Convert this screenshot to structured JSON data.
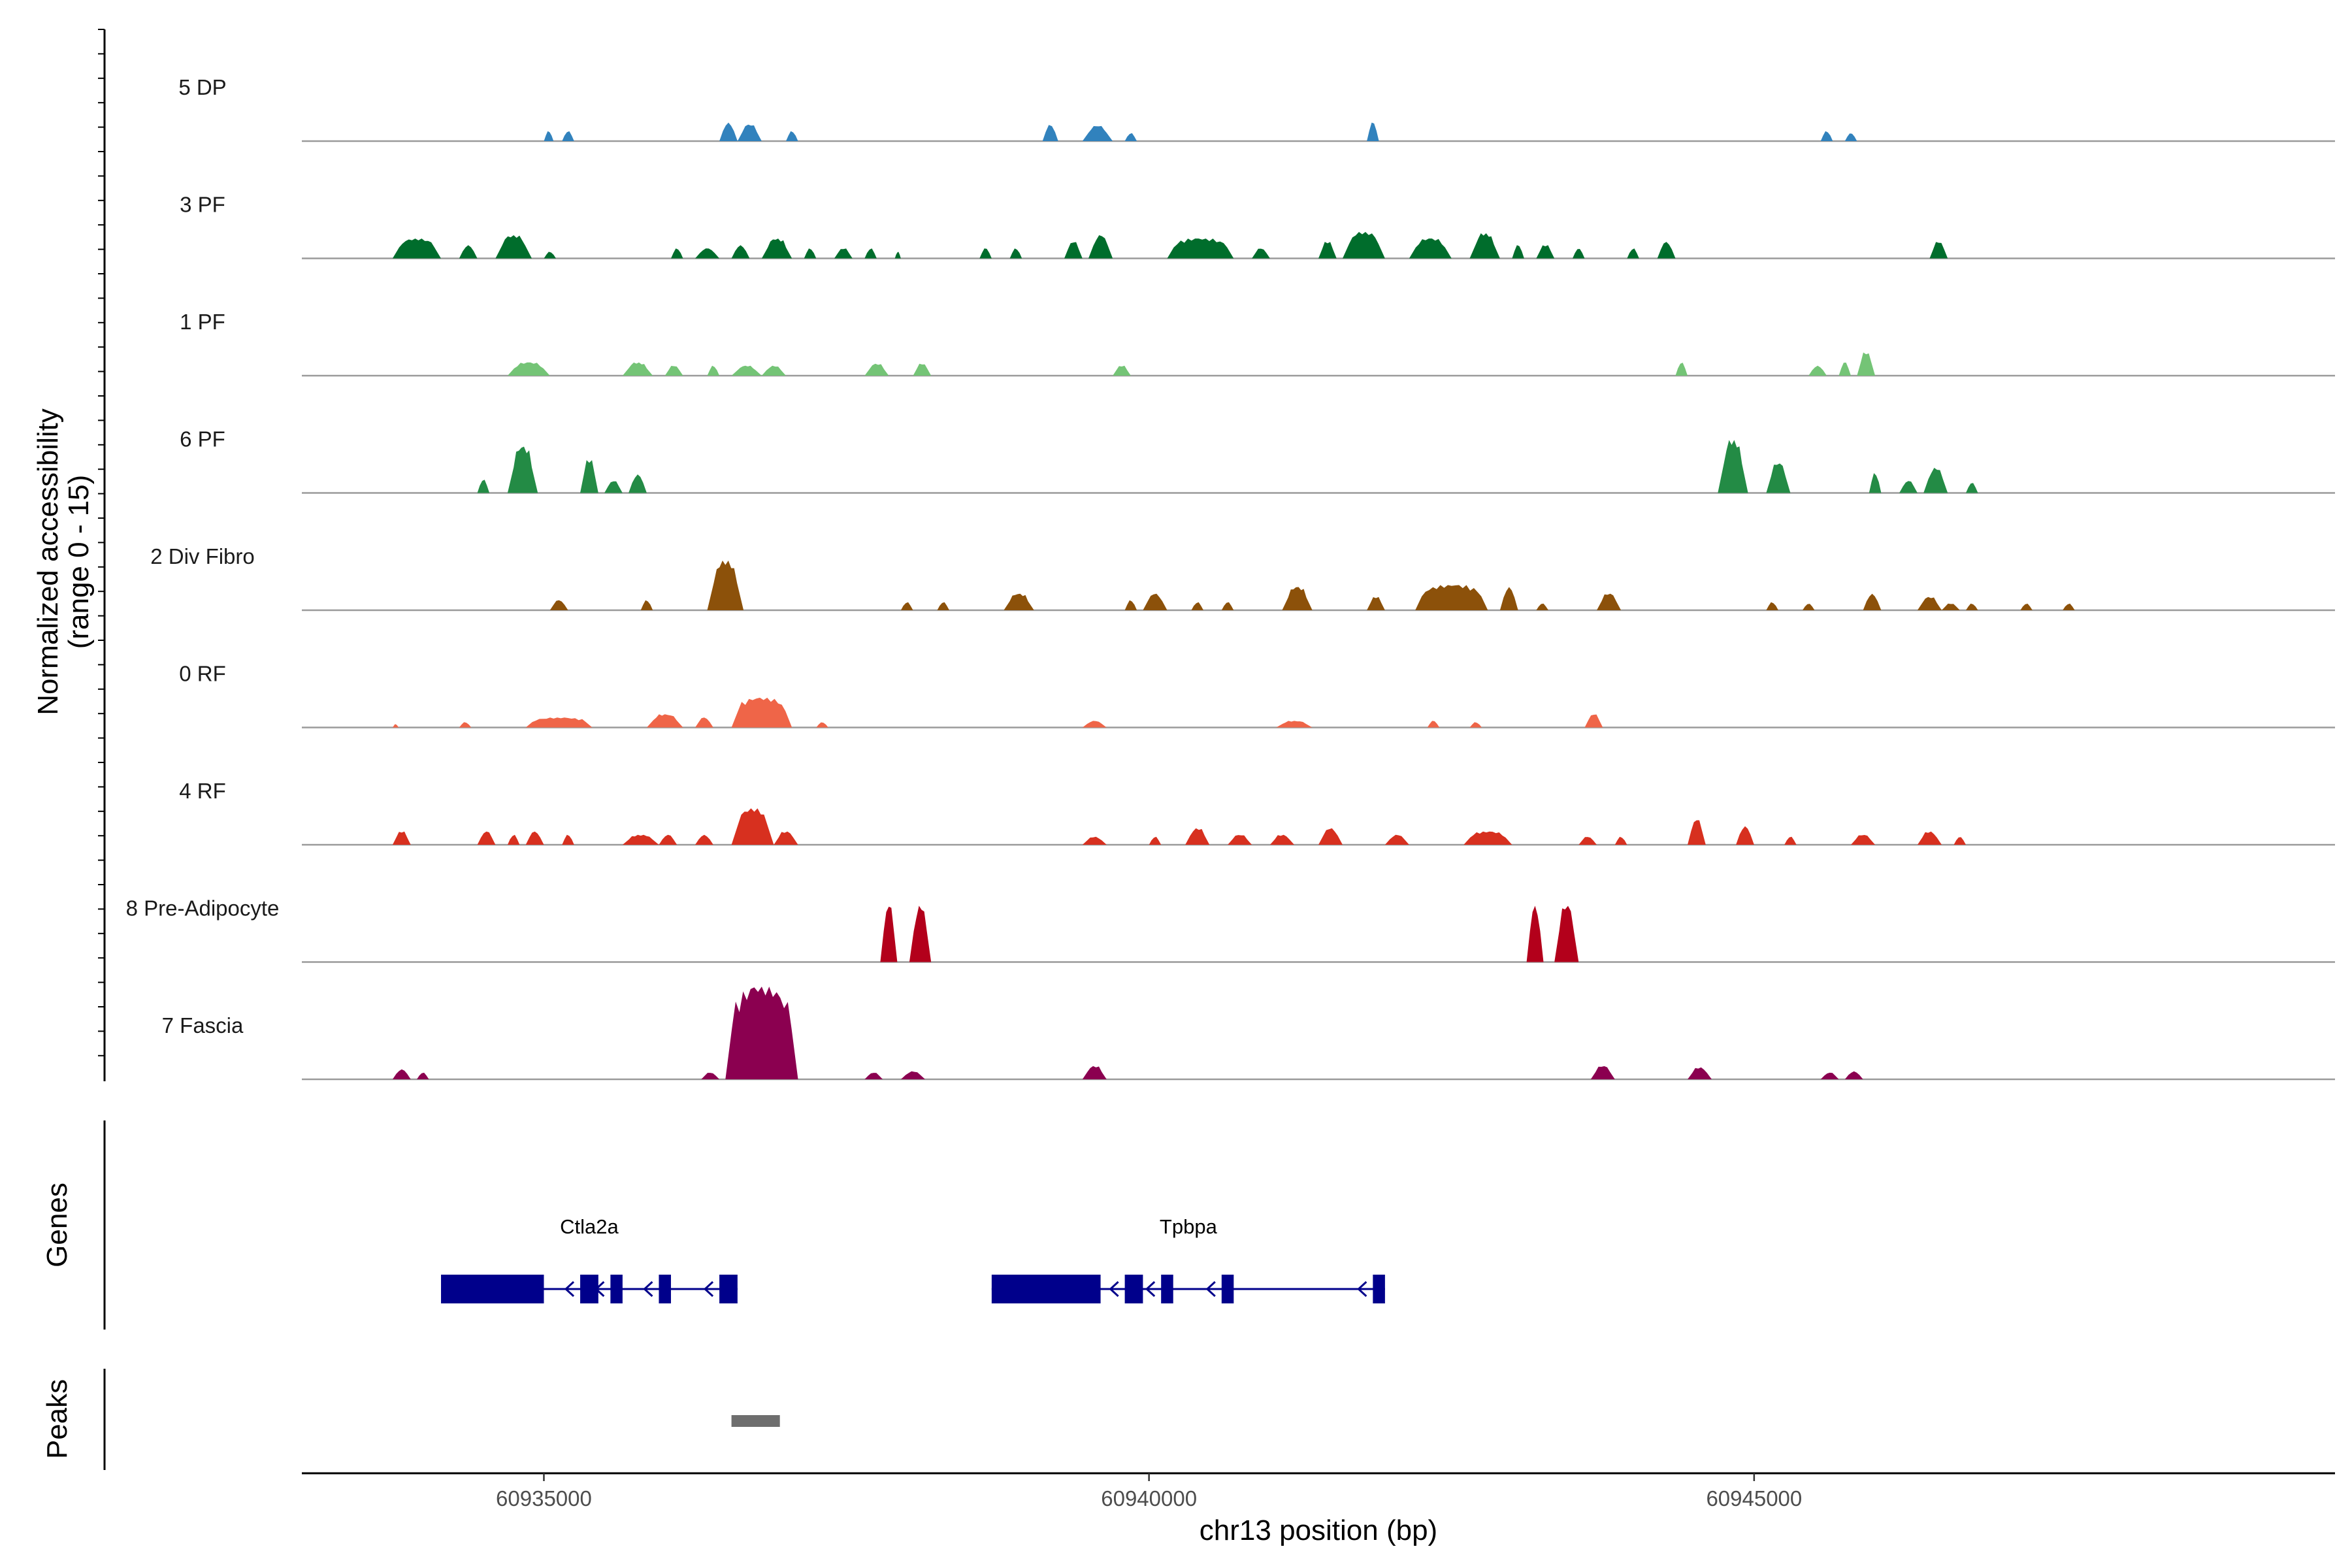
{
  "chart_data": {
    "type": "coverage",
    "y_axis_title_line1": "Normalized accessibility",
    "y_axis_title_line2": "(range 0 - 15)",
    "y_range": [
      0,
      15
    ],
    "x_axis_title": "chr13 position (bp)",
    "x_range": [
      60933000,
      60949800
    ],
    "x_ticks": [
      {
        "value": 60935000,
        "label": "60935000"
      },
      {
        "value": 60940000,
        "label": "60940000"
      },
      {
        "value": 60945000,
        "label": "60945000"
      }
    ],
    "genes_title": "Genes",
    "peaks_title": "Peaks",
    "tracks": [
      {
        "name": "5 DP",
        "color": "#3182bd",
        "peaks": [
          [
            60935000,
            60935080,
            1.5
          ],
          [
            60935150,
            60935250,
            1.5
          ],
          [
            60936450,
            60936600,
            2.8
          ],
          [
            60936600,
            60936800,
            2.5
          ],
          [
            60937000,
            60937100,
            1.5
          ],
          [
            60939120,
            60939250,
            2.5
          ],
          [
            60939450,
            60939700,
            2.3
          ],
          [
            60939800,
            60939900,
            1.2
          ],
          [
            60941800,
            60941900,
            2.8
          ],
          [
            60945550,
            60945650,
            1.5
          ],
          [
            60945750,
            60945850,
            1.2
          ]
        ]
      },
      {
        "name": "3 PF",
        "color": "#006d2c",
        "peaks": [
          [
            60933750,
            60934150,
            3.0
          ],
          [
            60934300,
            60934450,
            2.0
          ],
          [
            60934600,
            60934900,
            3.5
          ],
          [
            60935000,
            60935100,
            1.0
          ],
          [
            60936050,
            60936150,
            1.5
          ],
          [
            60936250,
            60936450,
            1.5
          ],
          [
            60936550,
            60936700,
            2.0
          ],
          [
            60936800,
            60937050,
            3.0
          ],
          [
            60937150,
            60937250,
            1.5
          ],
          [
            60937400,
            60937550,
            1.5
          ],
          [
            60937650,
            60937750,
            1.5
          ],
          [
            60937900,
            60937950,
            1.0
          ],
          [
            60938600,
            60938700,
            1.5
          ],
          [
            60938850,
            60938950,
            1.5
          ],
          [
            60939300,
            60939450,
            2.5
          ],
          [
            60939500,
            60939700,
            3.5
          ],
          [
            60940150,
            60940700,
            3.0
          ],
          [
            60940850,
            60941000,
            1.5
          ],
          [
            60941400,
            60941550,
            2.5
          ],
          [
            60941600,
            60941950,
            4.0
          ],
          [
            60942150,
            60942500,
            3.0
          ],
          [
            60942650,
            60942900,
            3.8
          ],
          [
            60943000,
            60943100,
            2.0
          ],
          [
            60943200,
            60943350,
            2.0
          ],
          [
            60943500,
            60943600,
            1.5
          ],
          [
            60943950,
            60944050,
            1.5
          ],
          [
            60944200,
            60944350,
            2.5
          ],
          [
            60946450,
            60946600,
            2.5
          ]
        ]
      },
      {
        "name": "1 PF",
        "color": "#74c476",
        "peaks": [
          [
            60934700,
            60935050,
            2.0
          ],
          [
            60935650,
            60935900,
            2.0
          ],
          [
            60936000,
            60936150,
            1.5
          ],
          [
            60936350,
            60936450,
            1.5
          ],
          [
            60936550,
            60936800,
            1.5
          ],
          [
            60936800,
            60937000,
            1.5
          ],
          [
            60937650,
            60937850,
            1.8
          ],
          [
            60938050,
            60938200,
            1.8
          ],
          [
            60939700,
            60939850,
            1.5
          ],
          [
            60944350,
            60944450,
            2.0
          ],
          [
            60945450,
            60945600,
            1.5
          ],
          [
            60945700,
            60945800,
            2.0
          ],
          [
            60945850,
            60946000,
            3.5
          ]
        ]
      },
      {
        "name": "6 PF",
        "color": "#238b45",
        "peaks": [
          [
            60934450,
            60934550,
            2.0
          ],
          [
            60934700,
            60934950,
            7.0
          ],
          [
            60935300,
            60935450,
            5.0
          ],
          [
            60935500,
            60935650,
            1.8
          ],
          [
            60935700,
            60935850,
            2.8
          ],
          [
            60944700,
            60944950,
            8.0
          ],
          [
            60945100,
            60945300,
            4.5
          ],
          [
            60945950,
            60946050,
            3.0
          ],
          [
            60946200,
            60946350,
            1.8
          ],
          [
            60946400,
            60946600,
            3.8
          ],
          [
            60946750,
            60946850,
            1.5
          ]
        ]
      },
      {
        "name": "2 Div Fibro",
        "color": "#8c510a",
        "peaks": [
          [
            60935050,
            60935200,
            1.5
          ],
          [
            60935800,
            60935900,
            1.5
          ],
          [
            60936350,
            60936650,
            7.5
          ],
          [
            60937950,
            60938050,
            1.2
          ],
          [
            60938250,
            60938350,
            1.2
          ],
          [
            60938800,
            60939050,
            2.5
          ],
          [
            60939800,
            60939900,
            1.5
          ],
          [
            60939950,
            60940150,
            2.5
          ],
          [
            60940350,
            60940450,
            1.2
          ],
          [
            60940600,
            60940700,
            1.2
          ],
          [
            60941100,
            60941350,
            3.5
          ],
          [
            60941800,
            60941950,
            2.0
          ],
          [
            60942200,
            60942800,
            3.8
          ],
          [
            60942900,
            60943050,
            3.5
          ],
          [
            60943200,
            60943300,
            1.0
          ],
          [
            60943700,
            60943900,
            2.5
          ],
          [
            60945100,
            60945200,
            1.2
          ],
          [
            60945400,
            60945500,
            1.0
          ],
          [
            60945900,
            60946050,
            2.5
          ],
          [
            60946350,
            60946550,
            2.0
          ],
          [
            60946550,
            60946700,
            1.0
          ],
          [
            60946750,
            60946850,
            1.0
          ],
          [
            60947200,
            60947300,
            1.0
          ],
          [
            60947550,
            60947650,
            1.0
          ]
        ]
      },
      {
        "name": "0 RF",
        "color": "#ef6548",
        "peaks": [
          [
            60933750,
            60933800,
            0.5
          ],
          [
            60934300,
            60934400,
            0.8
          ],
          [
            60934850,
            60935400,
            1.5
          ],
          [
            60935850,
            60936150,
            2.0
          ],
          [
            60936250,
            60936400,
            1.5
          ],
          [
            60936550,
            60937050,
            4.5
          ],
          [
            60937250,
            60937350,
            0.8
          ],
          [
            60939450,
            60939650,
            1.0
          ],
          [
            60941050,
            60941350,
            1.0
          ],
          [
            60942300,
            60942400,
            1.0
          ],
          [
            60942650,
            60942750,
            0.8
          ],
          [
            60943600,
            60943750,
            2.0
          ]
        ]
      },
      {
        "name": "4 RF",
        "color": "#d7301f",
        "peaks": [
          [
            60933750,
            60933900,
            2.0
          ],
          [
            60934450,
            60934600,
            2.0
          ],
          [
            60934700,
            60934800,
            1.5
          ],
          [
            60934850,
            60935000,
            2.0
          ],
          [
            60935150,
            60935250,
            1.5
          ],
          [
            60935650,
            60935950,
            1.5
          ],
          [
            60935950,
            60936100,
            1.5
          ],
          [
            60936250,
            60936400,
            1.5
          ],
          [
            60936550,
            60936900,
            5.5
          ],
          [
            60936900,
            60937100,
            2.0
          ],
          [
            60939450,
            60939650,
            1.2
          ],
          [
            60940000,
            60940100,
            1.2
          ],
          [
            60940300,
            60940500,
            2.5
          ],
          [
            60940650,
            60940850,
            1.5
          ],
          [
            60941000,
            60941200,
            1.5
          ],
          [
            60941400,
            60941600,
            2.5
          ],
          [
            60941950,
            60942150,
            1.5
          ],
          [
            60942600,
            60943000,
            2.0
          ],
          [
            60943550,
            60943700,
            1.2
          ],
          [
            60943850,
            60943950,
            1.2
          ],
          [
            60944450,
            60944600,
            3.8
          ],
          [
            60944850,
            60945000,
            2.8
          ],
          [
            60945250,
            60945350,
            1.2
          ],
          [
            60945800,
            60946000,
            1.5
          ],
          [
            60946350,
            60946550,
            2.0
          ],
          [
            60946650,
            60946750,
            1.2
          ]
        ]
      },
      {
        "name": "8 Pre-Adipocyte",
        "color": "#b3001b",
        "peaks": [
          [
            60937780,
            60937920,
            8.5
          ],
          [
            60938020,
            60938200,
            8.5
          ],
          [
            60943120,
            60943260,
            8.5
          ],
          [
            60943350,
            60943550,
            8.5
          ]
        ]
      },
      {
        "name": "7 Fascia",
        "color": "#8b0050",
        "peaks": [
          [
            60933750,
            60933900,
            1.5
          ],
          [
            60933950,
            60934050,
            1.0
          ],
          [
            60936300,
            60936450,
            1.0
          ],
          [
            60936500,
            60937100,
            14.0
          ],
          [
            60937650,
            60937800,
            1.0
          ],
          [
            60937950,
            60938150,
            1.2
          ],
          [
            60939450,
            60939650,
            2.0
          ],
          [
            60943650,
            60943850,
            2.0
          ],
          [
            60944450,
            60944650,
            1.8
          ],
          [
            60945550,
            60945700,
            1.0
          ],
          [
            60945750,
            60945900,
            1.2
          ]
        ]
      }
    ],
    "genes": [
      {
        "name": "Ctla2a",
        "strand": "-",
        "start": 60934150,
        "end": 60936600,
        "exons": [
          [
            60934150,
            60935000
          ],
          [
            60935300,
            60935450
          ],
          [
            60935550,
            60935650
          ],
          [
            60935950,
            60936050
          ],
          [
            60936450,
            60936600
          ]
        ]
      },
      {
        "name": "Tpbpa",
        "strand": "-",
        "start": 60938700,
        "end": 60941950,
        "exons": [
          [
            60938700,
            60939600
          ],
          [
            60939800,
            60939950
          ],
          [
            60940100,
            60940200
          ],
          [
            60940600,
            60940700
          ],
          [
            60941850,
            60941950
          ]
        ]
      }
    ],
    "peaks": [
      [
        60936550,
        60936950
      ]
    ]
  }
}
